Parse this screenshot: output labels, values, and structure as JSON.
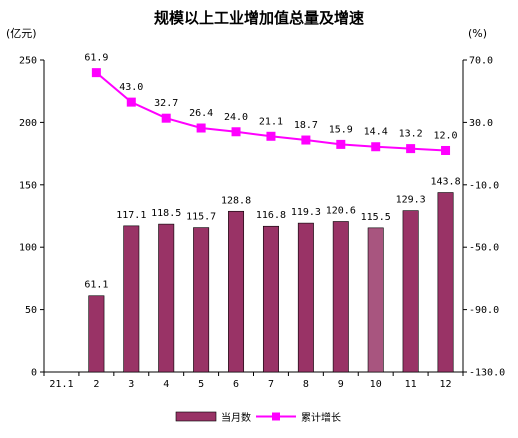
{
  "chart_data": {
    "type": "bar+line",
    "title": "规模以上工业增加值总量及增速",
    "left_unit": "(亿元)",
    "right_unit": "(%)",
    "categories": [
      "21.1",
      "2",
      "3",
      "4",
      "5",
      "6",
      "7",
      "8",
      "9",
      "10",
      "11",
      "12"
    ],
    "series": [
      {
        "name": "当月数",
        "type": "bar",
        "axis": "left",
        "values": [
          null,
          61.1,
          117.1,
          118.5,
          115.7,
          128.8,
          116.8,
          119.3,
          120.6,
          115.5,
          129.3,
          143.8
        ],
        "labels": [
          "",
          "61.1",
          "117.1",
          "118.5",
          "115.7",
          "128.8",
          "116.8",
          "119.3",
          "120.6",
          "115.5",
          "129.3",
          "143.8"
        ],
        "color": "#993366",
        "highlight_index": 9,
        "highlight_color": "#A8557F"
      },
      {
        "name": "累计增长",
        "type": "line",
        "axis": "right",
        "values": [
          null,
          61.9,
          43.0,
          32.7,
          26.4,
          24.0,
          21.1,
          18.7,
          15.9,
          14.4,
          13.2,
          12.0
        ],
        "labels": [
          "",
          "61.9",
          "43.0",
          "32.7",
          "26.4",
          "24.0",
          "21.1",
          "18.7",
          "15.9",
          "14.4",
          "13.2",
          "12.0"
        ],
        "color": "#FF00FF"
      }
    ],
    "y_left": {
      "min": 0,
      "max": 250,
      "ticks": [
        "0",
        "50",
        "100",
        "150",
        "200",
        "250"
      ]
    },
    "y_right": {
      "min": -130,
      "max": 70,
      "ticks": [
        "70.0",
        "30.0",
        "-10.0",
        "-50.0",
        "-90.0",
        "-130.0"
      ]
    },
    "grid": false,
    "legend_position": "bottom-center"
  }
}
